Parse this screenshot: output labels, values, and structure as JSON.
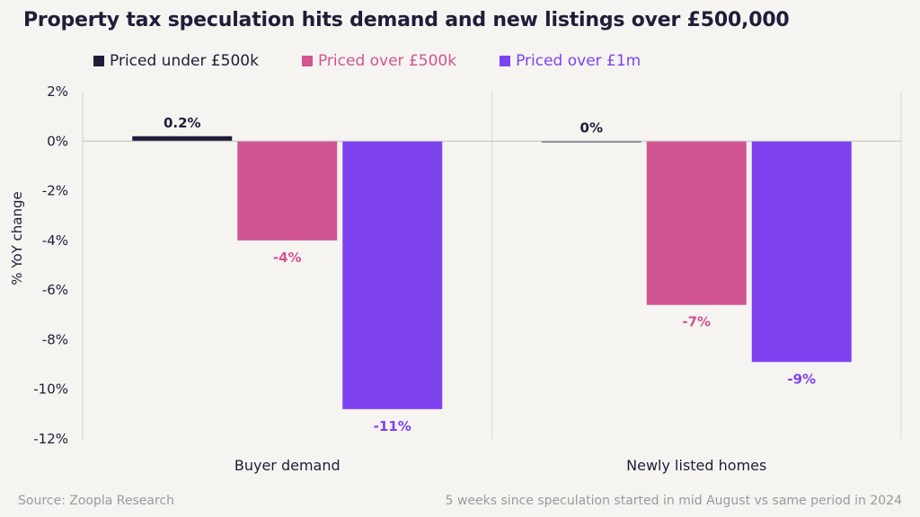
{
  "title": "Property tax speculation hits demand and new listings over £500,000",
  "footer": {
    "source": "Source: Zoopla Research",
    "note": "5 weeks since speculation started in mid August vs same period in 2024"
  },
  "chart_data": {
    "type": "bar",
    "title": "Property tax speculation hits demand and new listings over £500,000",
    "xlabel": "",
    "ylabel": "% YoY change",
    "ylim": [
      -12,
      2
    ],
    "yticks": [
      2,
      0,
      -2,
      -4,
      -6,
      -8,
      -10,
      -12
    ],
    "ytick_labels": [
      "2%",
      "0%",
      "-2%",
      "-4%",
      "-6%",
      "-8%",
      "-10%",
      "-12%"
    ],
    "categories": [
      "Buyer demand",
      "Newly listed homes"
    ],
    "legend_position": "top-left",
    "grid": false,
    "series": [
      {
        "name": "Priced under £500k",
        "color": "#201c3a",
        "label_color": "#201c3a",
        "values": [
          0.2,
          0.0
        ],
        "labels": [
          "0.2%",
          "0%"
        ]
      },
      {
        "name": "Priced over £500k",
        "color": "#d05592",
        "label_color": "#d05592",
        "values": [
          -4.0,
          -6.6
        ],
        "labels": [
          "-4%",
          "-7%"
        ]
      },
      {
        "name": "Priced over £1m",
        "color": "#7e42f0",
        "label_color": "#7e42f0",
        "values": [
          -10.8,
          -8.9
        ],
        "labels": [
          "-11%",
          "-9%"
        ]
      }
    ]
  }
}
